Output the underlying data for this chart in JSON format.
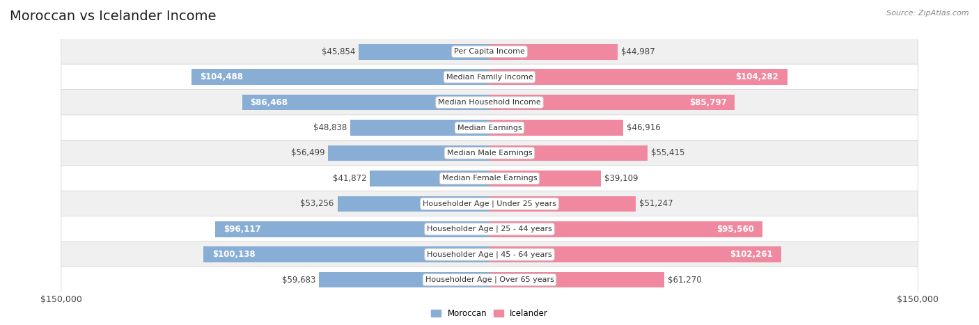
{
  "title": "Moroccan vs Icelander Income",
  "source": "Source: ZipAtlas.com",
  "categories": [
    "Per Capita Income",
    "Median Family Income",
    "Median Household Income",
    "Median Earnings",
    "Median Male Earnings",
    "Median Female Earnings",
    "Householder Age | Under 25 years",
    "Householder Age | 25 - 44 years",
    "Householder Age | 45 - 64 years",
    "Householder Age | Over 65 years"
  ],
  "moroccan_values": [
    45854,
    104488,
    86468,
    48838,
    56499,
    41872,
    53256,
    96117,
    100138,
    59683
  ],
  "icelander_values": [
    44987,
    104282,
    85797,
    46916,
    55415,
    39109,
    51247,
    95560,
    102261,
    61270
  ],
  "moroccan_labels": [
    "$45,854",
    "$104,488",
    "$86,468",
    "$48,838",
    "$56,499",
    "$41,872",
    "$53,256",
    "$96,117",
    "$100,138",
    "$59,683"
  ],
  "icelander_labels": [
    "$44,987",
    "$104,282",
    "$85,797",
    "$46,916",
    "$55,415",
    "$39,109",
    "$51,247",
    "$95,560",
    "$102,261",
    "$61,270"
  ],
  "moroccan_color": "#89aed6",
  "icelander_color": "#f0899f",
  "row_bg_even": "#f0f0f0",
  "row_bg_odd": "#ffffff",
  "max_value": 150000,
  "xlabel_left": "$150,000",
  "xlabel_right": "$150,000",
  "title_fontsize": 14,
  "label_fontsize": 8.5,
  "category_fontsize": 8.0,
  "axis_fontsize": 9,
  "large_threshold": 75000
}
